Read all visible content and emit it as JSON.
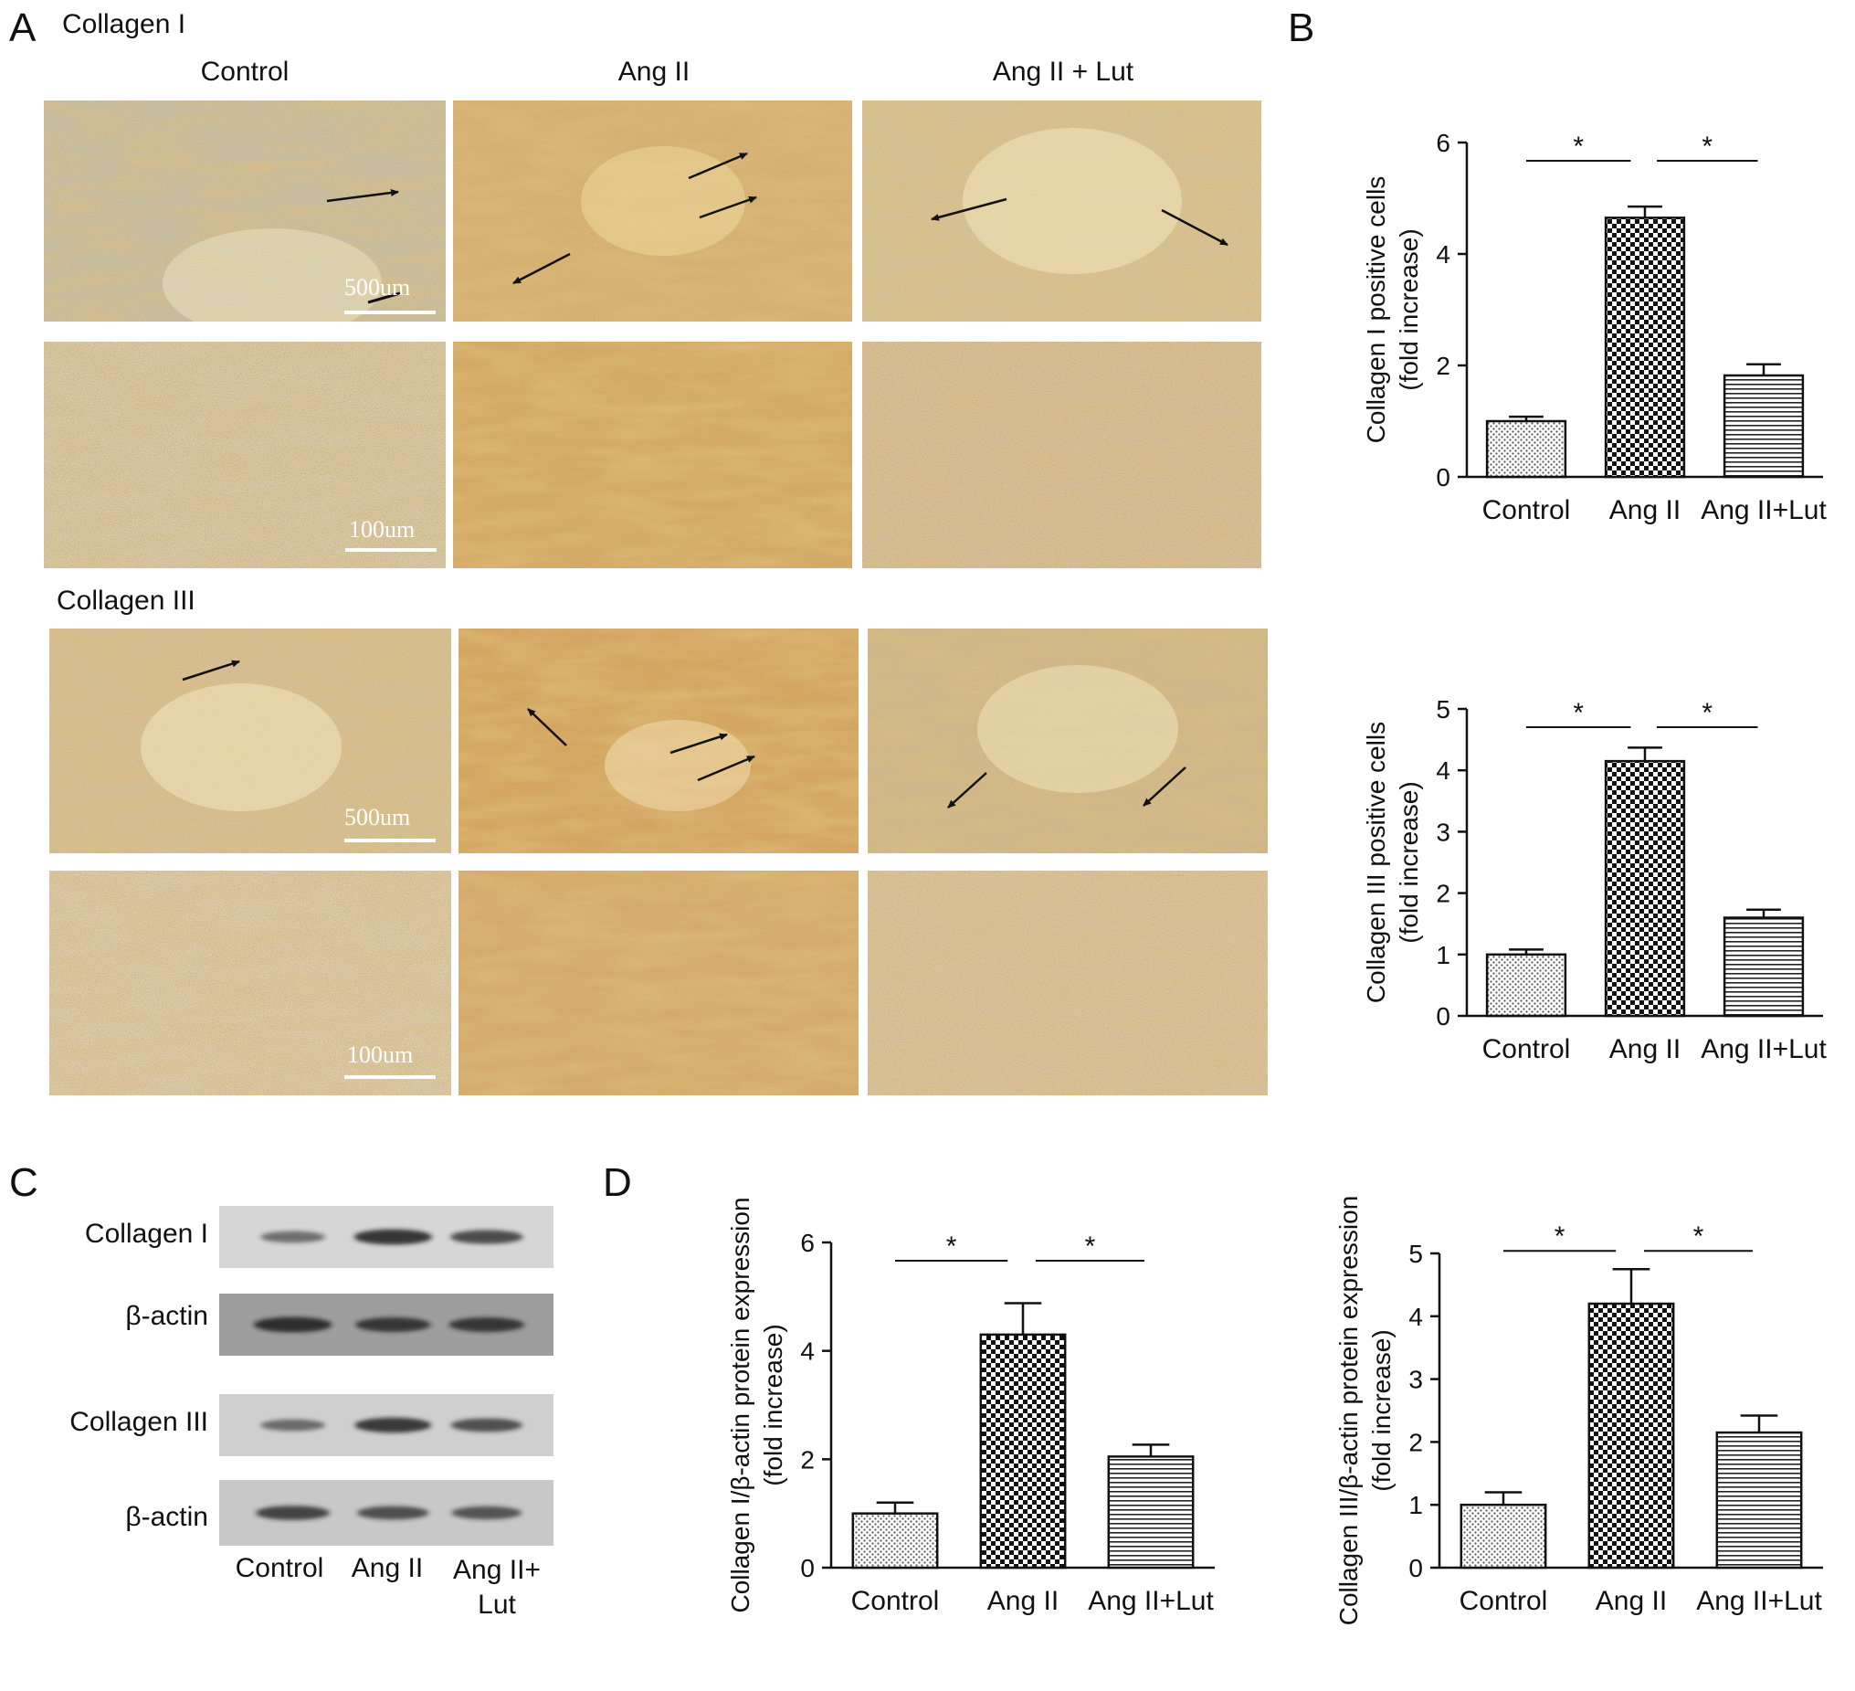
{
  "figure": {
    "panel_labels": {
      "a": "A",
      "b": "B",
      "c": "C",
      "d": "D"
    },
    "groups": [
      "Control",
      "Ang II",
      "Ang II + Lut"
    ],
    "sections": [
      {
        "title": "Collagen I",
        "scale_bars": [
          "500um",
          "100um"
        ]
      },
      {
        "title": "Collagen III",
        "scale_bars": [
          "500um",
          "100um"
        ]
      }
    ],
    "western_blot": {
      "rows": [
        "Collagen I",
        "β-actin",
        "Collagen III",
        "β-actin"
      ],
      "lanes": [
        "Control",
        "Ang II",
        "Ang II+\nLut"
      ],
      "band_intensity": [
        [
          0.35,
          0.85,
          0.65
        ],
        [
          0.85,
          0.75,
          0.75
        ],
        [
          0.35,
          0.8,
          0.6
        ],
        [
          0.7,
          0.6,
          0.55
        ]
      ]
    },
    "colors": {
      "stain": "#d9b66a",
      "nuclei": "#6a6aa0",
      "ink": "#111111"
    }
  },
  "chart_data": [
    {
      "id": "B-top",
      "type": "bar",
      "categories": [
        "Control",
        "Ang II",
        "Ang II+Lut"
      ],
      "values": [
        1.0,
        4.65,
        1.82
      ],
      "errors": [
        0.08,
        0.2,
        0.2
      ],
      "ylabel": [
        "Collagen I positive cells",
        "(fold increase)"
      ],
      "ylim": [
        0,
        6
      ],
      "yticks": [
        0,
        2,
        4,
        6
      ],
      "significance": [
        {
          "from": 0,
          "to": 1,
          "label": "*"
        },
        {
          "from": 1,
          "to": 2,
          "label": "*"
        }
      ]
    },
    {
      "id": "B-bottom",
      "type": "bar",
      "categories": [
        "Control",
        "Ang II",
        "Ang II+Lut"
      ],
      "values": [
        1.0,
        4.15,
        1.6
      ],
      "errors": [
        0.08,
        0.22,
        0.13
      ],
      "ylabel": [
        "Collagen III positive cells",
        "(fold increase)"
      ],
      "ylim": [
        0,
        5
      ],
      "yticks": [
        0,
        1,
        2,
        3,
        4,
        5
      ],
      "significance": [
        {
          "from": 0,
          "to": 1,
          "label": "*"
        },
        {
          "from": 1,
          "to": 2,
          "label": "*"
        }
      ]
    },
    {
      "id": "D-left",
      "type": "bar",
      "categories": [
        "Control",
        "Ang II",
        "Ang II+Lut"
      ],
      "values": [
        1.0,
        4.3,
        2.05
      ],
      "errors": [
        0.2,
        0.58,
        0.22
      ],
      "ylabel": [
        "Collagen I/β-actin protein expression",
        "(fold increase)"
      ],
      "ylim": [
        0,
        6
      ],
      "yticks": [
        0,
        2,
        4,
        6
      ],
      "significance": [
        {
          "from": 0,
          "to": 1,
          "label": "*"
        },
        {
          "from": 1,
          "to": 2,
          "label": "*"
        }
      ]
    },
    {
      "id": "D-right",
      "type": "bar",
      "categories": [
        "Control",
        "Ang II",
        "Ang II+Lut"
      ],
      "values": [
        1.0,
        4.2,
        2.15
      ],
      "errors": [
        0.2,
        0.55,
        0.27
      ],
      "ylabel": [
        "Collagen III/β-actin protein expression",
        "(fold increase)"
      ],
      "ylim": [
        0,
        5
      ],
      "yticks": [
        0,
        1,
        2,
        3,
        4,
        5
      ],
      "significance": [
        {
          "from": 0,
          "to": 1,
          "label": "*"
        },
        {
          "from": 1,
          "to": 2,
          "label": "*"
        }
      ]
    }
  ]
}
